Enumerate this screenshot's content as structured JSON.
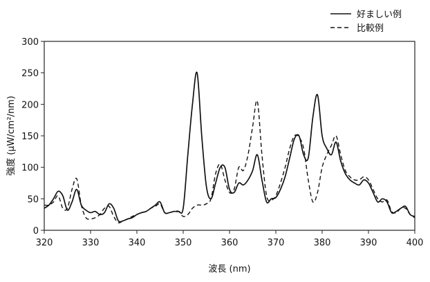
{
  "chart_data": {
    "type": "line",
    "title": "",
    "xlabel": "波長 (nm)",
    "ylabel": "強度 (μW/cm²/nm)",
    "xlim": [
      320,
      400
    ],
    "ylim": [
      0,
      300
    ],
    "xticks": [
      320,
      330,
      340,
      350,
      360,
      370,
      380,
      390,
      400
    ],
    "yticks": [
      0,
      50,
      100,
      150,
      200,
      250,
      300
    ],
    "grid": false,
    "legend_position": "top-right",
    "series": [
      {
        "name": "好ましい例",
        "style": "solid",
        "color": "#111111",
        "x": [
          320,
          321,
          322,
          323,
          324,
          325,
          326,
          327,
          328,
          329,
          330,
          331,
          332,
          333,
          334,
          335,
          336,
          337,
          338,
          339,
          340,
          341,
          342,
          343,
          344,
          345,
          346,
          347,
          348,
          349,
          350,
          351,
          352,
          353,
          354,
          355,
          356,
          357,
          358,
          359,
          360,
          361,
          362,
          363,
          364,
          365,
          366,
          367,
          368,
          369,
          370,
          371,
          372,
          373,
          374,
          375,
          376,
          377,
          378,
          379,
          380,
          381,
          382,
          383,
          384,
          385,
          386,
          387,
          388,
          389,
          390,
          391,
          392,
          393,
          394,
          395,
          396,
          397,
          398,
          399,
          400
        ],
        "values": [
          35,
          40,
          50,
          62,
          55,
          32,
          45,
          65,
          40,
          32,
          28,
          30,
          25,
          28,
          42,
          35,
          15,
          15,
          18,
          20,
          25,
          28,
          30,
          35,
          40,
          45,
          28,
          28,
          30,
          30,
          35,
          120,
          200,
          250,
          150,
          70,
          50,
          75,
          100,
          100,
          65,
          60,
          75,
          72,
          80,
          95,
          120,
          80,
          45,
          50,
          52,
          65,
          85,
          115,
          145,
          150,
          120,
          115,
          180,
          215,
          150,
          130,
          120,
          140,
          110,
          90,
          80,
          75,
          72,
          80,
          75,
          60,
          45,
          50,
          45,
          28,
          30,
          35,
          38,
          25,
          22
        ]
      },
      {
        "name": "比較例",
        "style": "dashed",
        "color": "#111111",
        "x": [
          320,
          321,
          322,
          323,
          324,
          325,
          326,
          327,
          328,
          329,
          330,
          331,
          332,
          333,
          334,
          335,
          336,
          337,
          338,
          339,
          340,
          341,
          342,
          343,
          344,
          345,
          346,
          347,
          348,
          349,
          350,
          351,
          352,
          353,
          354,
          355,
          356,
          357,
          358,
          359,
          360,
          361,
          362,
          363,
          364,
          365,
          366,
          367,
          368,
          369,
          370,
          371,
          372,
          373,
          374,
          375,
          376,
          377,
          378,
          379,
          380,
          381,
          382,
          383,
          384,
          385,
          386,
          387,
          388,
          389,
          390,
          391,
          392,
          393,
          394,
          395,
          396,
          397,
          398,
          399,
          400
        ],
        "values": [
          40,
          40,
          45,
          55,
          35,
          35,
          65,
          82,
          40,
          20,
          18,
          20,
          25,
          35,
          38,
          22,
          12,
          15,
          18,
          22,
          25,
          28,
          30,
          35,
          38,
          42,
          28,
          28,
          30,
          30,
          22,
          25,
          35,
          40,
          40,
          42,
          50,
          90,
          105,
          80,
          60,
          65,
          100,
          95,
          120,
          165,
          205,
          120,
          55,
          48,
          55,
          75,
          100,
          130,
          150,
          148,
          130,
          80,
          45,
          60,
          100,
          120,
          135,
          150,
          120,
          95,
          85,
          80,
          80,
          85,
          80,
          65,
          50,
          45,
          48,
          30,
          28,
          35,
          35,
          25,
          20
        ]
      }
    ]
  }
}
